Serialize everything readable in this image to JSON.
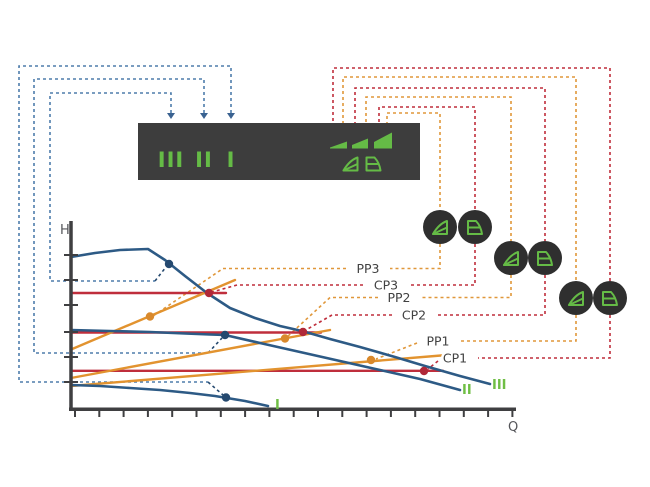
{
  "colors": {
    "panel_bg": "#3d3d3d",
    "badge_bg": "#2f2f2f",
    "green": "#65bb46",
    "pump_curve_blue": "#2d5a85",
    "route_steel_blue": "#4e7dab",
    "leader_navy": "#25496f",
    "constant_pressure_red": "#bf2e3c",
    "proportional_pressure_orange": "#e2932f",
    "axis_gray": "#3f3f41",
    "label_gray": "#414141"
  },
  "control_panel": {
    "speed_settings": [
      {
        "label": "III"
      },
      {
        "label": "II"
      },
      {
        "label": "I"
      }
    ],
    "speed_wedges": [
      "speed-wedge-small",
      "speed-wedge-medium",
      "speed-wedge-large"
    ],
    "mode_icons": [
      {
        "name": "proportional-pressure-icon"
      },
      {
        "name": "constant-pressure-icon"
      }
    ]
  },
  "badges": [
    {
      "icon": "proportional-pressure-icon",
      "links_to": "PP3"
    },
    {
      "icon": "constant-pressure-icon",
      "links_to": "CP3"
    },
    {
      "icon": "proportional-pressure-icon",
      "links_to": "PP2"
    },
    {
      "icon": "constant-pressure-icon",
      "links_to": "CP2"
    },
    {
      "icon": "proportional-pressure-icon",
      "links_to": "PP1"
    },
    {
      "icon": "constant-pressure-icon",
      "links_to": "CP1"
    }
  ],
  "chart": {
    "y_axis_label": "H",
    "x_axis_label": "Q",
    "pump_curves": [
      {
        "label": "I"
      },
      {
        "label": "II"
      },
      {
        "label": "III"
      }
    ],
    "settings": [
      {
        "label": "PP3",
        "mode": "proportional-pressure"
      },
      {
        "label": "CP3",
        "mode": "constant-pressure"
      },
      {
        "label": "PP2",
        "mode": "proportional-pressure"
      },
      {
        "label": "CP2",
        "mode": "constant-pressure"
      },
      {
        "label": "PP1",
        "mode": "proportional-pressure"
      },
      {
        "label": "CP1",
        "mode": "constant-pressure"
      }
    ]
  }
}
